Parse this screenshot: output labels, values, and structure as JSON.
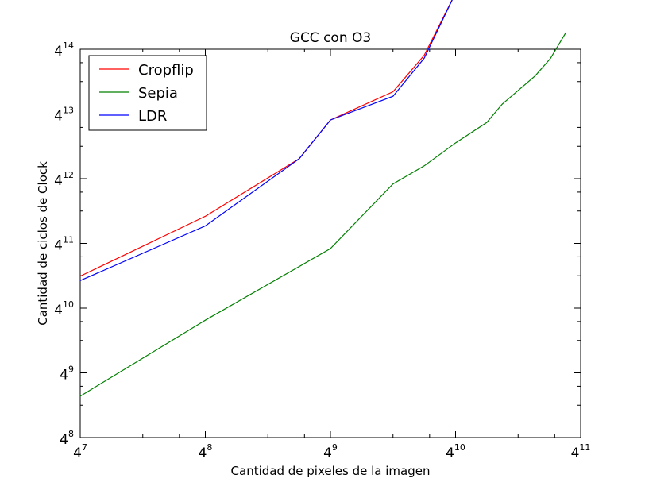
{
  "chart_data": {
    "type": "line",
    "title": "GCC con O3",
    "xlabel": "Cantidad de pixeles de la imagen",
    "ylabel": "Cantidad de ciclos de Clock",
    "x_scale": "log4",
    "y_scale": "log4",
    "xlim_exp": [
      7,
      11
    ],
    "ylim_exp": [
      8,
      14
    ],
    "x_ticks": [
      {
        "base": "4",
        "exp": "7"
      },
      {
        "base": "4",
        "exp": "8"
      },
      {
        "base": "4",
        "exp": "9"
      },
      {
        "base": "4",
        "exp": "10"
      },
      {
        "base": "4",
        "exp": "11"
      }
    ],
    "y_ticks": [
      {
        "base": "4",
        "exp": "8"
      },
      {
        "base": "4",
        "exp": "9"
      },
      {
        "base": "4",
        "exp": "10"
      },
      {
        "base": "4",
        "exp": "11"
      },
      {
        "base": "4",
        "exp": "12"
      },
      {
        "base": "4",
        "exp": "13"
      },
      {
        "base": "4",
        "exp": "14"
      }
    ],
    "legend_position": "top-left",
    "grid": false,
    "series": [
      {
        "name": "Cropflip",
        "color": "#ff0000",
        "x": [
          16384,
          65536,
          185364,
          262144,
          524288,
          741455,
          1048576,
          1482910,
          2097152,
          2965821,
          3560003
        ],
        "y": [
          2080000,
          7500000,
          25700000,
          59000000,
          108000000,
          236000000,
          896000000,
          910000000,
          1670000000,
          5270000000,
          4680000000
        ]
      },
      {
        "name": "Sepia",
        "color": "#008000",
        "x": [
          16384,
          65536,
          262144,
          524288,
          741455,
          1048576,
          1482910,
          1760000,
          2536000,
          3000000,
          3560003
        ],
        "y": [
          159000,
          810000,
          3750000,
          15000000,
          22100000,
          36100000,
          56000000,
          83000000,
          152000000,
          220000000,
          383000000
        ]
      },
      {
        "name": "LDR",
        "color": "#0000ff",
        "x": [
          16384,
          65536,
          185364,
          262144,
          524288,
          741455,
          1048576,
          1482910,
          2097152,
          2965821,
          3560003
        ],
        "y": [
          1890000,
          6100000,
          25700000,
          59000000,
          98000000,
          222000000,
          896000000,
          910000000,
          1670000000,
          5270000000,
          4680000000
        ]
      }
    ]
  }
}
